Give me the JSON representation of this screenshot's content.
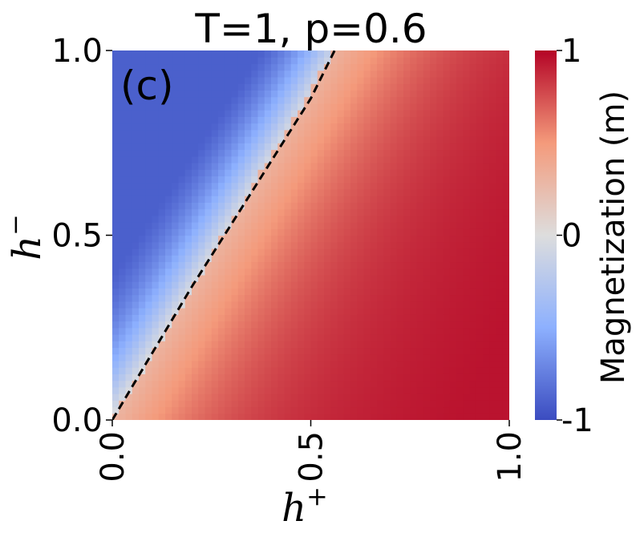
{
  "chart_data": {
    "type": "heatmap",
    "title": "T=1, p=0.6",
    "panel_label": "(c)",
    "xlabel": "h",
    "xlabel_sup": "+",
    "ylabel": "h",
    "ylabel_sup": "−",
    "xlim": [
      0.0,
      1.0
    ],
    "ylim": [
      0.0,
      1.0
    ],
    "x_ticks": [
      0.0,
      0.5,
      1.0
    ],
    "x_tick_labels": [
      "0.0",
      "0.5",
      "1.0"
    ],
    "y_ticks": [
      0.0,
      0.5,
      1.0
    ],
    "y_tick_labels": [
      "0.0",
      "0.5",
      "1.0"
    ],
    "colormap": "coolwarm",
    "colors": {
      "low": "#3b4cc0",
      "mid": "#dddddd",
      "high": "#b40426"
    },
    "colorbar": {
      "label": "Magnetization (m)",
      "range": [
        -1,
        1
      ],
      "ticks": [
        -1,
        0,
        1
      ],
      "tick_labels": [
        "-1",
        "0",
        "1"
      ]
    },
    "series": [
      {
        "style": "dashed",
        "x": [
          0.0,
          0.1,
          0.2,
          0.3,
          0.4,
          0.5,
          0.56
        ],
        "y": [
          0.0,
          0.18,
          0.36,
          0.53,
          0.7,
          0.87,
          1.0
        ]
      }
    ],
    "grid": false
  }
}
